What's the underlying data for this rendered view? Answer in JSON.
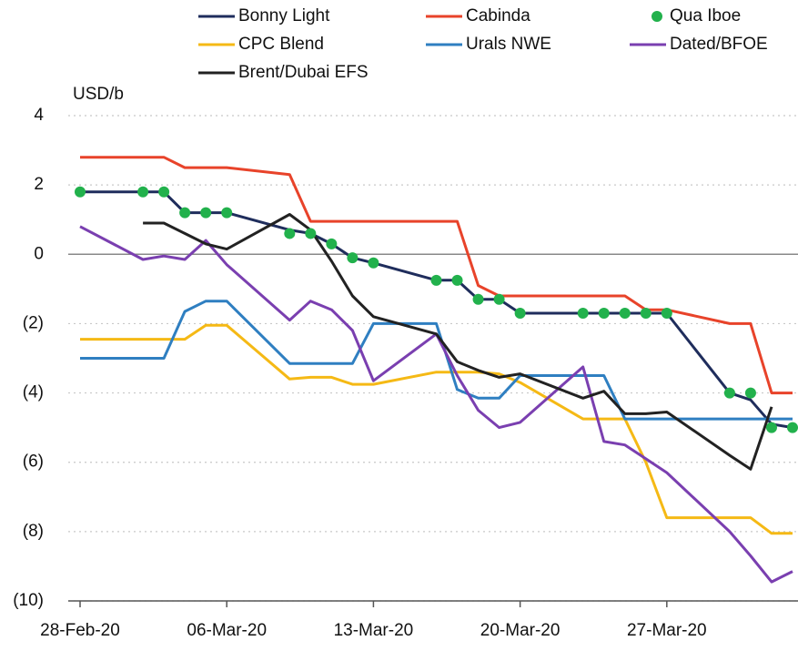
{
  "chart_data": {
    "type": "line",
    "y_axis_label": "USD/b",
    "x": [
      "2020-02-28",
      "2020-03-02",
      "2020-03-03",
      "2020-03-04",
      "2020-03-05",
      "2020-03-06",
      "2020-03-09",
      "2020-03-10",
      "2020-03-11",
      "2020-03-12",
      "2020-03-13",
      "2020-03-16",
      "2020-03-17",
      "2020-03-18",
      "2020-03-19",
      "2020-03-20",
      "2020-03-23",
      "2020-03-24",
      "2020-03-25",
      "2020-03-26",
      "2020-03-27",
      "2020-03-30",
      "2020-03-31",
      "2020-04-01",
      "2020-04-02"
    ],
    "xlim": [
      "2020-02-28",
      "2020-04-02"
    ],
    "xticks": [
      {
        "value": "2020-02-28",
        "label": "28-Feb-20"
      },
      {
        "value": "2020-03-06",
        "label": "06-Mar-20"
      },
      {
        "value": "2020-03-13",
        "label": "13-Mar-20"
      },
      {
        "value": "2020-03-20",
        "label": "20-Mar-20"
      },
      {
        "value": "2020-03-27",
        "label": "27-Mar-20"
      }
    ],
    "ylim": [
      -10,
      4
    ],
    "yticks": [
      {
        "value": -10,
        "label": "(10)"
      },
      {
        "value": -8,
        "label": "(8)"
      },
      {
        "value": -6,
        "label": "(6)"
      },
      {
        "value": -4,
        "label": "(4)"
      },
      {
        "value": -2,
        "label": "(2)"
      },
      0,
      2,
      4
    ],
    "grid": true,
    "series": [
      {
        "name": "Bonny Light",
        "color": "#1f2d5c",
        "style": "line",
        "values": [
          1.8,
          1.8,
          1.8,
          1.2,
          1.2,
          1.2,
          0.7,
          0.6,
          0.3,
          -0.1,
          -0.25,
          -0.75,
          -0.75,
          -1.3,
          -1.3,
          -1.7,
          -1.7,
          -1.7,
          -1.7,
          -1.7,
          -1.7,
          -4.0,
          -4.2,
          -4.9,
          -5.0
        ]
      },
      {
        "name": "Cabinda",
        "color": "#e8432a",
        "style": "line",
        "values": [
          2.8,
          2.8,
          2.8,
          2.5,
          2.5,
          2.5,
          2.3,
          0.95,
          0.95,
          0.95,
          0.95,
          0.95,
          0.95,
          -0.9,
          -1.2,
          -1.2,
          -1.2,
          -1.2,
          -1.2,
          -1.6,
          -1.6,
          -2.0,
          -2.0,
          -4.0,
          -4.0
        ]
      },
      {
        "name": "Qua Iboe",
        "color": "#22b14c",
        "style": "markers",
        "values": [
          1.8,
          1.8,
          1.8,
          1.2,
          1.2,
          1.2,
          0.6,
          0.6,
          0.3,
          -0.1,
          -0.25,
          -0.75,
          -0.75,
          -1.3,
          -1.3,
          -1.7,
          -1.7,
          -1.7,
          -1.7,
          -1.7,
          -1.7,
          -4.0,
          -4.0,
          -5.0,
          -5.0
        ]
      },
      {
        "name": "CPC Blend",
        "color": "#f5b915",
        "style": "line",
        "values": [
          -2.45,
          -2.45,
          -2.45,
          -2.45,
          -2.05,
          -2.05,
          -3.6,
          -3.55,
          -3.55,
          -3.75,
          -3.75,
          -3.4,
          -3.4,
          -3.4,
          -3.45,
          -3.7,
          -4.75,
          -4.75,
          -4.75,
          -6.0,
          -7.6,
          -7.6,
          -7.6,
          -8.05,
          -8.05
        ]
      },
      {
        "name": "Urals NWE",
        "color": "#2f7fc1",
        "style": "line",
        "values": [
          -3.0,
          -3.0,
          -3.0,
          -1.65,
          -1.35,
          -1.35,
          -3.15,
          -3.15,
          -3.15,
          -3.15,
          -2.0,
          -2.0,
          -3.9,
          -4.15,
          -4.15,
          -3.5,
          -3.5,
          -3.5,
          -4.75,
          -4.75,
          -4.75,
          -4.75,
          -4.75,
          -4.75,
          -4.75
        ]
      },
      {
        "name": "Dated/BFOE",
        "color": "#7a3fb0",
        "style": "line",
        "values": [
          0.8,
          -0.15,
          -0.05,
          -0.15,
          0.4,
          -0.3,
          -1.9,
          -1.35,
          -1.6,
          -2.2,
          -3.65,
          -2.3,
          -3.5,
          -4.5,
          -5.0,
          -4.85,
          -3.25,
          -5.4,
          -5.5,
          -5.9,
          -6.3,
          -8.0,
          -8.7,
          -9.45,
          -9.15
        ]
      },
      {
        "name": "Brent/Dubai EFS",
        "color": "#222222",
        "style": "line",
        "values": [
          null,
          0.9,
          0.9,
          0.6,
          0.3,
          0.15,
          1.15,
          0.7,
          -0.2,
          -1.2,
          -1.8,
          -2.3,
          -3.1,
          -3.35,
          -3.55,
          -3.45,
          -4.15,
          -3.95,
          -4.6,
          -4.6,
          -4.55,
          -5.8,
          -6.2,
          -4.4,
          null
        ]
      }
    ]
  }
}
